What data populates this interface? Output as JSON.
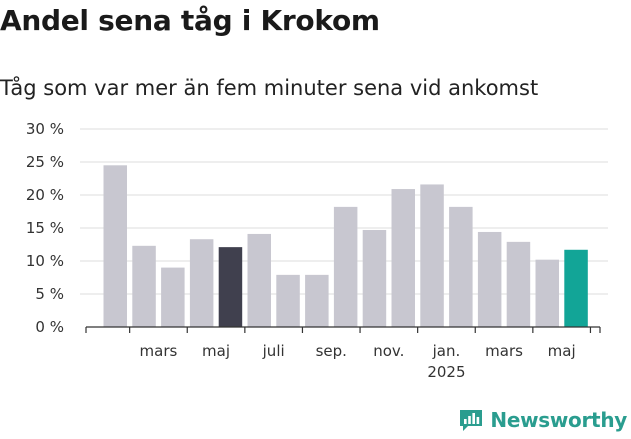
{
  "chart_data": {
    "type": "bar",
    "title": "Andel sena tåg i Krokom",
    "subtitle": "Tåg som var mer än fem minuter sena vid ankomst",
    "xlabel": "",
    "ylabel": "",
    "ylim": [
      0,
      30
    ],
    "yticks": [
      "0 %",
      "5 %",
      "10 %",
      "15 %",
      "20 %",
      "25 %",
      "30 %"
    ],
    "x_tick_labels": [
      {
        "label": "mars",
        "sub": "",
        "index": 1.5
      },
      {
        "label": "maj",
        "sub": "",
        "index": 3.5
      },
      {
        "label": "juli",
        "sub": "",
        "index": 5.5
      },
      {
        "label": "sep.",
        "sub": "",
        "index": 7.5
      },
      {
        "label": "nov.",
        "sub": "",
        "index": 9.5
      },
      {
        "label": "jan.",
        "sub": "2025",
        "index": 11.5
      },
      {
        "label": "mars",
        "sub": "",
        "index": 13.5
      },
      {
        "label": "maj",
        "sub": "",
        "index": 15.5
      }
    ],
    "values": [
      24.5,
      12.3,
      9.0,
      13.3,
      12.1,
      14.1,
      7.9,
      7.9,
      18.2,
      14.7,
      20.9,
      21.6,
      18.2,
      14.4,
      12.9,
      10.2,
      11.7
    ],
    "bar_colors": {
      "default": "#c8c7d0",
      "highlight_dark": "#40404e",
      "highlight_current": "#12a597"
    },
    "highlight_dark_index": 4,
    "highlight_current_index": 16,
    "grid": true
  },
  "brand": {
    "name": "Newsworthy",
    "icon": "newsworthy-logo-icon",
    "color": "#2a9d8f"
  }
}
